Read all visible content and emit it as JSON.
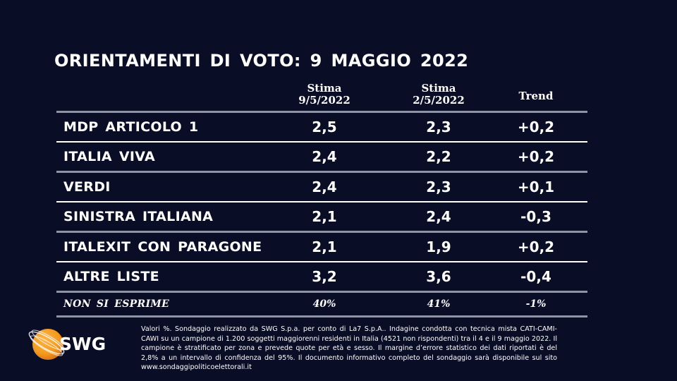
{
  "title": "ORIENTAMENTI DI VOTO: 9 MAGGIO 2022",
  "table": {
    "headers": {
      "col1_line1": "Stima",
      "col1_line2": "9/5/2022",
      "col2_line1": "Stima",
      "col2_line2": "2/5/2022",
      "col3": "Trend"
    },
    "rows": [
      {
        "party": "MDP ARTICOLO 1",
        "current": "2,5",
        "previous": "2,3",
        "trend": "+0,2"
      },
      {
        "party": "ITALIA VIVA",
        "current": "2,4",
        "previous": "2,2",
        "trend": "+0,2"
      },
      {
        "party": "VERDI",
        "current": "2,4",
        "previous": "2,3",
        "trend": "+0,1"
      },
      {
        "party": "SINISTRA ITALIANA",
        "current": "2,1",
        "previous": "2,4",
        "trend": "-0,3"
      },
      {
        "party": "ITALEXIT CON PARAGONE",
        "current": "2,1",
        "previous": "1,9",
        "trend": "+0,2"
      },
      {
        "party": "ALTRE LISTE",
        "current": "3,2",
        "previous": "3,6",
        "trend": "-0,4"
      }
    ],
    "footer_row": {
      "party": "NON SI ESPRIME",
      "current": "40%",
      "previous": "41%",
      "trend": "-1%"
    }
  },
  "logo": {
    "text": "SWG",
    "icon": "globe-icon",
    "color": "#f39a1e"
  },
  "footnote": "Valori %. Sondaggio realizzato da SWG S.p.a. per conto di La7 S.p.A.. Indagine condotta con tecnica mista CATI-CAMI-CAWI su un campione di 1.200 soggetti maggiorenni residenti in Italia (4521 non rispondenti) tra il 4 e il 9 maggio 2022. Il campione è stratificato per zona e prevede quote per età e sesso. Il margine d’errore statistico dei dati riportati è del 2,8% a un intervallo di confidenza del 95%. Il documento informativo completo del sondaggio sarà disponibile sul sito www.sondaggipoliticoelettorali.it",
  "colors": {
    "background": "#0a0d26",
    "text": "#ffffff",
    "divider_gray": "#8e93a8",
    "divider_white": "#ffffff"
  }
}
